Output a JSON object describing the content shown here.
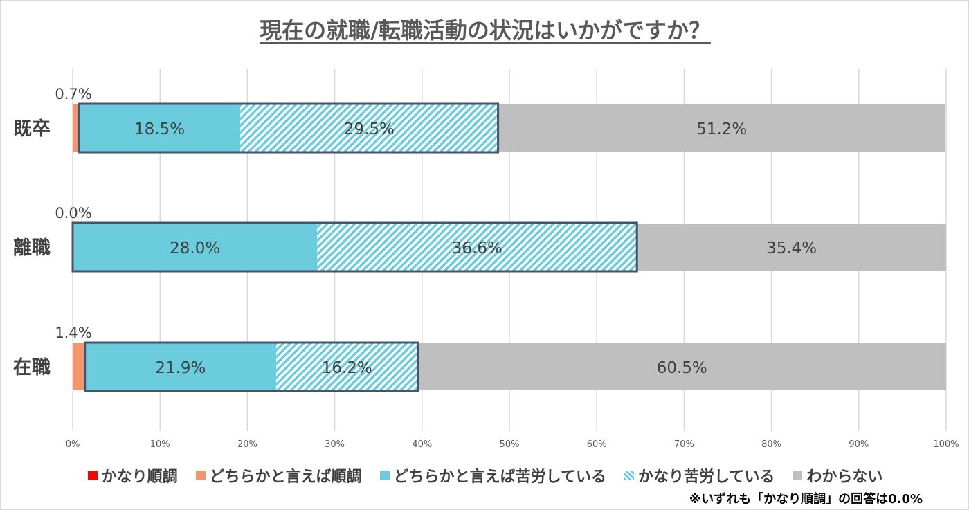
{
  "chart_data": {
    "type": "bar",
    "orientation": "horizontal",
    "stacked": true,
    "title": "現在の就職/転職活動の状況はいかがですか？",
    "categories": [
      "既卒",
      "離職",
      "在職"
    ],
    "series": [
      {
        "name": "かなり順調",
        "values": [
          0.0,
          0.0,
          0.0
        ],
        "color": "#ff0000"
      },
      {
        "name": "どちらかと言えば順調",
        "values": [
          0.7,
          0.0,
          1.4
        ],
        "color": "#f4956b"
      },
      {
        "name": "どちらかと言えば苦労している",
        "values": [
          18.5,
          28.0,
          21.9
        ],
        "color": "#6accdc"
      },
      {
        "name": "かなり苦労している",
        "values": [
          29.5,
          36.6,
          16.2
        ],
        "color": "#6accdc",
        "pattern": "hatched"
      },
      {
        "name": "わからない",
        "values": [
          51.2,
          35.4,
          60.5
        ],
        "color": "#bfbfbf"
      }
    ],
    "data_labels": {
      "既卒": [
        "0.7%",
        "18.5%",
        "29.5%",
        "51.2%"
      ],
      "離職": [
        "0.0%",
        "28.0%",
        "36.6%",
        "35.4%"
      ],
      "在職": [
        "1.4%",
        "21.9%",
        "16.2%",
        "60.5%"
      ]
    },
    "xlim": [
      0,
      100
    ],
    "x_ticks": [
      "0%",
      "10%",
      "20%",
      "30%",
      "40%",
      "50%",
      "60%",
      "70%",
      "80%",
      "90%",
      "100%"
    ],
    "grid": true,
    "legend_position": "bottom",
    "highlight": "difficulty segments outlined"
  },
  "footnote": "※いずれも「かなり順調」の回答は0.0%"
}
